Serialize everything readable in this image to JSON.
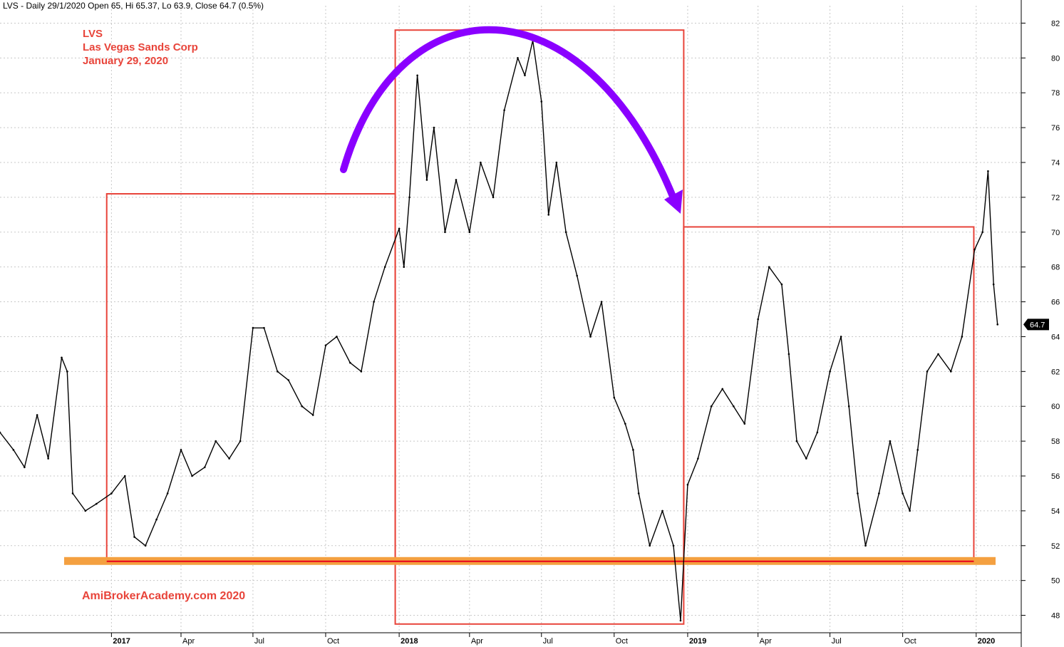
{
  "header": {
    "text": "LVS - Daily 29/1/2020 Open 65, Hi 65.37, Lo 63.9, Close 64.7 (0.5%)"
  },
  "annotations": {
    "ticker": "LVS",
    "company": "Las Vegas Sands Corp",
    "date": "January 29, 2020",
    "watermark": "AmiBrokerAcademy.com  2020"
  },
  "last_price_label": "64.7",
  "colors": {
    "price": "#000000",
    "box": "#e8443a",
    "support": "#f4a040",
    "support_line": "#e8001c",
    "arrow": "#8a00ff",
    "grid": "#c8c8c8",
    "label_bg": "#000000"
  },
  "chart_data": {
    "type": "line",
    "title": "",
    "xlabel": "",
    "ylabel": "",
    "ylim": [
      47,
      83
    ],
    "xlim": [
      "2016-08-15",
      "2020-02-28"
    ],
    "y_ticks": [
      48,
      50,
      52,
      54,
      56,
      58,
      60,
      62,
      64,
      66,
      68,
      70,
      72,
      74,
      76,
      78,
      80,
      82
    ],
    "x_ticks": [
      {
        "label": "2017",
        "date": "2017-01-03",
        "major": true
      },
      {
        "label": "Apr",
        "date": "2017-04-01",
        "major": false
      },
      {
        "label": "Jul",
        "date": "2017-07-01",
        "major": false
      },
      {
        "label": "Oct",
        "date": "2017-10-01",
        "major": false
      },
      {
        "label": "2018",
        "date": "2018-01-02",
        "major": true
      },
      {
        "label": "Apr",
        "date": "2018-04-01",
        "major": false
      },
      {
        "label": "Jul",
        "date": "2018-07-01",
        "major": false
      },
      {
        "label": "Oct",
        "date": "2018-10-01",
        "major": false
      },
      {
        "label": "2019",
        "date": "2019-01-02",
        "major": true
      },
      {
        "label": "Apr",
        "date": "2019-04-01",
        "major": false
      },
      {
        "label": "Jul",
        "date": "2019-07-01",
        "major": false
      },
      {
        "label": "Oct",
        "date": "2019-10-01",
        "major": false
      },
      {
        "label": "2020",
        "date": "2020-01-02",
        "major": true
      }
    ],
    "grid": true,
    "series": [
      {
        "name": "",
        "x": [
          "2016-08-15",
          "2016-09-01",
          "2016-09-15",
          "2016-10-01",
          "2016-10-15",
          "2016-11-01",
          "2016-11-08",
          "2016-11-15",
          "2016-12-01",
          "2016-12-15",
          "2017-01-03",
          "2017-01-20",
          "2017-02-01",
          "2017-02-15",
          "2017-03-01",
          "2017-03-15",
          "2017-04-01",
          "2017-04-15",
          "2017-05-01",
          "2017-05-15",
          "2017-06-01",
          "2017-06-15",
          "2017-07-01",
          "2017-07-15",
          "2017-08-01",
          "2017-08-15",
          "2017-09-01",
          "2017-09-15",
          "2017-10-01",
          "2017-10-15",
          "2017-11-01",
          "2017-11-15",
          "2017-12-01",
          "2017-12-15",
          "2018-01-02",
          "2018-01-08",
          "2018-01-15",
          "2018-01-25",
          "2018-02-06",
          "2018-02-15",
          "2018-03-01",
          "2018-03-15",
          "2018-04-01",
          "2018-04-15",
          "2018-05-01",
          "2018-05-15",
          "2018-06-01",
          "2018-06-10",
          "2018-06-20",
          "2018-07-01",
          "2018-07-10",
          "2018-07-20",
          "2018-08-01",
          "2018-08-15",
          "2018-09-01",
          "2018-09-15",
          "2018-10-01",
          "2018-10-15",
          "2018-10-25",
          "2018-11-01",
          "2018-11-15",
          "2018-12-01",
          "2018-12-15",
          "2018-12-24",
          "2019-01-02",
          "2019-01-15",
          "2019-02-01",
          "2019-02-15",
          "2019-03-01",
          "2019-03-15",
          "2019-04-01",
          "2019-04-15",
          "2019-05-01",
          "2019-05-10",
          "2019-05-20",
          "2019-06-01",
          "2019-06-15",
          "2019-07-01",
          "2019-07-15",
          "2019-07-25",
          "2019-08-05",
          "2019-08-15",
          "2019-09-01",
          "2019-09-15",
          "2019-10-01",
          "2019-10-10",
          "2019-10-20",
          "2019-11-01",
          "2019-11-15",
          "2019-12-01",
          "2019-12-15",
          "2019-12-31",
          "2020-01-10",
          "2020-01-17",
          "2020-01-24",
          "2020-01-29"
        ],
        "values": [
          58.5,
          57.5,
          56.5,
          59.5,
          57,
          62.8,
          62,
          55,
          54,
          54.4,
          55,
          56,
          52.5,
          52,
          53.5,
          55,
          57.5,
          56,
          56.5,
          58,
          57,
          58,
          64.5,
          64.5,
          62,
          61.5,
          60,
          59.5,
          63.5,
          64,
          62.5,
          62,
          66,
          68,
          70.2,
          68,
          72,
          79,
          73,
          76,
          70,
          73,
          70,
          74,
          72,
          77,
          80,
          79,
          81,
          77.5,
          71,
          74,
          70,
          67.5,
          64,
          66,
          60.5,
          59,
          57.5,
          55,
          52,
          54,
          52,
          47.7,
          55.5,
          57,
          60,
          61,
          60,
          59,
          65,
          68,
          67,
          63,
          58,
          57,
          58.5,
          62,
          64,
          60,
          55,
          52,
          55,
          58,
          55,
          54,
          57.5,
          62,
          63,
          62,
          64,
          69,
          70,
          73.5,
          67,
          64.7
        ]
      }
    ],
    "box_annotations": [
      {
        "x_start": "2016-12-28",
        "x_end": "2017-12-28",
        "y_low": 51.2,
        "y_high": 72.2
      },
      {
        "x_start": "2017-12-28",
        "x_end": "2018-12-28",
        "y_low": 47.5,
        "y_high": 81.6
      },
      {
        "x_start": "2018-12-28",
        "x_end": "2019-12-30",
        "y_low": 51.0,
        "y_high": 70.3
      }
    ],
    "support_level": 51.1
  }
}
